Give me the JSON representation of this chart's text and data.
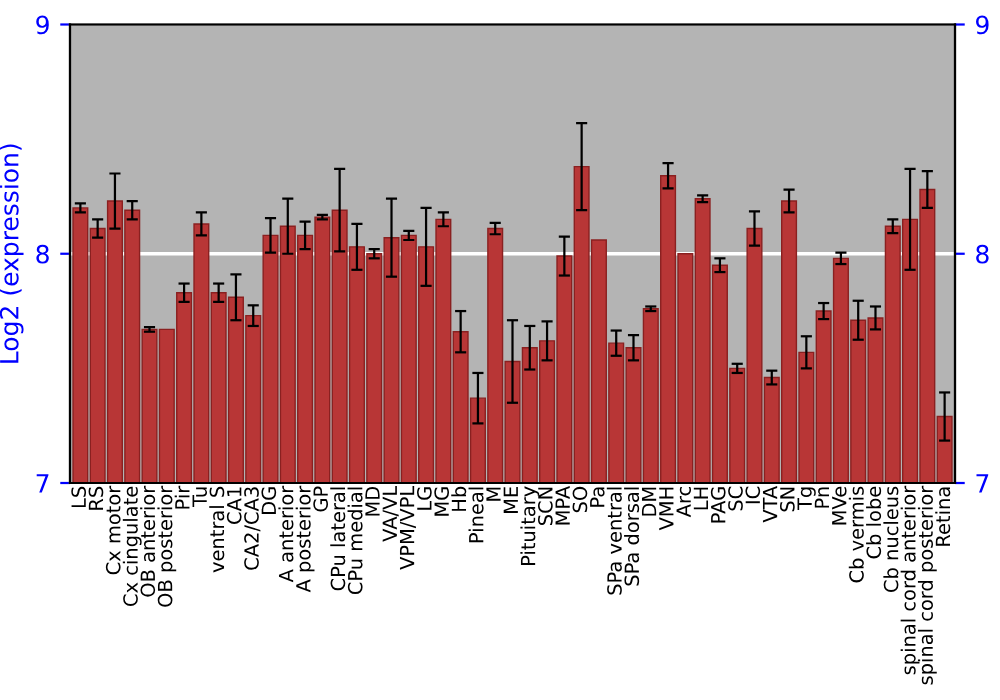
{
  "chart_data": {
    "type": "bar",
    "ylabel": "Log2 (expression)",
    "categories": [
      "LS",
      "RS",
      "Cx motor",
      "Cx cingulate",
      "OB anterior",
      "OB posterior",
      "Pir",
      "Tu",
      "ventral S",
      "CA1",
      "CA2/CA3",
      "DG",
      "A anterior",
      "A posterior",
      "GP",
      "CPu lateral",
      "CPu medial",
      "MD",
      "VA/VL",
      "VPM/VPL",
      "LG",
      "MG",
      "Hb",
      "Pineal",
      "M",
      "ME",
      "Pituitary",
      "SCN",
      "MPA",
      "SO",
      "Pa",
      "SPa ventral",
      "SPa dorsal",
      "DM",
      "VMH",
      "Arc",
      "LH",
      "PAG",
      "SC",
      "IC",
      "VTA",
      "SN",
      "Tg",
      "Pn",
      "MVe",
      "Cb vermis",
      "Cb lobe",
      "Cb nucleus",
      "spinal cord anterior",
      "spinal cord posterior",
      "Retina"
    ],
    "values": [
      8.2,
      8.11,
      8.23,
      8.19,
      7.67,
      7.67,
      7.83,
      8.13,
      7.83,
      7.81,
      7.73,
      8.08,
      8.12,
      8.08,
      8.16,
      8.19,
      8.03,
      8.0,
      8.07,
      8.08,
      8.03,
      8.15,
      7.66,
      7.37,
      8.11,
      7.53,
      7.59,
      7.62,
      7.99,
      8.38,
      8.06,
      7.61,
      7.59,
      7.76,
      8.34,
      8.0,
      8.24,
      7.95,
      7.5,
      8.11,
      7.46,
      8.23,
      7.57,
      7.75,
      7.98,
      7.71,
      7.72,
      8.12,
      8.15,
      8.28,
      7.29
    ],
    "errors": [
      0.02,
      0.04,
      0.12,
      0.04,
      0.01,
      null,
      0.04,
      0.05,
      0.04,
      0.1,
      0.045,
      0.075,
      0.12,
      0.06,
      0.01,
      0.18,
      0.1,
      0.02,
      0.17,
      0.02,
      0.17,
      0.03,
      0.09,
      0.11,
      0.025,
      0.18,
      0.095,
      0.085,
      0.085,
      0.19,
      null,
      0.055,
      0.055,
      0.01,
      0.055,
      null,
      0.015,
      0.03,
      0.02,
      0.075,
      0.03,
      0.05,
      0.07,
      0.035,
      0.025,
      0.085,
      0.05,
      0.03,
      0.22,
      0.08,
      0.105
    ],
    "color": "#b83636",
    "ylim": [
      7,
      9
    ],
    "yticks": [
      7,
      8,
      9
    ],
    "y2lim": [
      7,
      9
    ],
    "y2ticks": [
      7,
      8,
      9
    ],
    "ref_lines": [
      {
        "axis": "y",
        "value": 8,
        "color": "#ffffff"
      }
    ]
  }
}
